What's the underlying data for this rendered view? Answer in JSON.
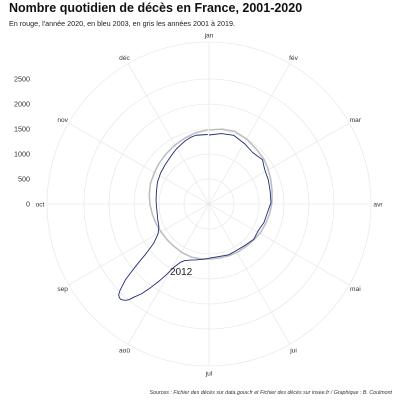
{
  "header": {
    "title": "Nombre quotidien de décès en France, 2001-2020",
    "subtitle": "En rouge, l'année 2020, en bleu 2003, en gris les années 2001 à 2019."
  },
  "caption": "Sources : Fichier des décès sur data.gouv.fr et Fichier des décès sur insee.fr / Graphique : B. Coulmont",
  "annotation": "2012",
  "colors": {
    "y2003": "#1e2a78",
    "other_years": "#b8b8b8",
    "y2020": "#d62728",
    "grid": "#e3e3e3"
  },
  "chart_data": {
    "type": "line",
    "coord": "polar",
    "title": "Nombre quotidien de décès en France, 2001-2020",
    "theta_axis": {
      "labels": [
        "jan",
        "fév",
        "mar",
        "avr",
        "mai",
        "jui",
        "jul",
        "aoû",
        "sep",
        "oct",
        "nov",
        "déc"
      ],
      "direction": "clockwise",
      "start": "top"
    },
    "r_axis": {
      "ticks": [
        0,
        500,
        1000,
        1500,
        2000,
        2500
      ],
      "range": [
        0,
        2500
      ]
    },
    "grid": true,
    "series": [
      {
        "name": "2003",
        "color": "#1e2a78",
        "x": [
          1,
          11,
          21,
          32,
          42,
          52,
          60,
          70,
          80,
          91,
          101,
          111,
          121,
          131,
          141,
          152,
          162,
          172,
          182,
          187,
          192,
          197,
          202,
          207,
          210,
          213,
          215,
          217,
          219,
          221,
          223,
          224,
          225,
          226,
          227,
          228,
          229,
          230,
          232,
          234,
          236,
          239,
          244,
          250,
          258,
          268,
          278,
          288,
          298,
          308,
          318,
          328,
          335,
          340,
          345,
          350,
          355,
          360,
          365
        ],
        "values": [
          1380,
          1430,
          1460,
          1400,
          1350,
          1390,
          1310,
          1280,
          1250,
          1240,
          1180,
          1160,
          1120,
          1140,
          1100,
          1080,
          1090,
          1070,
          1080,
          1100,
          1120,
          1150,
          1180,
          1230,
          1300,
          1450,
          1650,
          1850,
          2050,
          2250,
          2400,
          2500,
          2550,
          2580,
          2600,
          2590,
          2560,
          2480,
          2250,
          1900,
          1600,
          1350,
          1180,
          1100,
          1070,
          1050,
          1060,
          1080,
          1120,
          1150,
          1180,
          1230,
          1280,
          1310,
          1350,
          1380,
          1400,
          1390,
          1390
        ]
      },
      {
        "name": "2001-2019",
        "color": "#b8b8b8",
        "x": [
          1,
          11,
          21,
          32,
          42,
          52,
          60,
          70,
          80,
          91,
          101,
          111,
          121,
          131,
          141,
          152,
          162,
          172,
          182,
          192,
          202,
          213,
          223,
          233,
          244,
          254,
          264,
          274,
          284,
          294,
          305,
          315,
          325,
          335,
          345,
          355,
          365
        ],
        "values": [
          1480,
          1520,
          1540,
          1500,
          1450,
          1420,
          1380,
          1330,
          1290,
          1260,
          1230,
          1200,
          1180,
          1150,
          1130,
          1120,
          1110,
          1100,
          1100,
          1110,
          1120,
          1110,
          1100,
          1100,
          1110,
          1130,
          1150,
          1180,
          1210,
          1240,
          1260,
          1290,
          1320,
          1360,
          1400,
          1450,
          1480
        ]
      }
    ]
  }
}
